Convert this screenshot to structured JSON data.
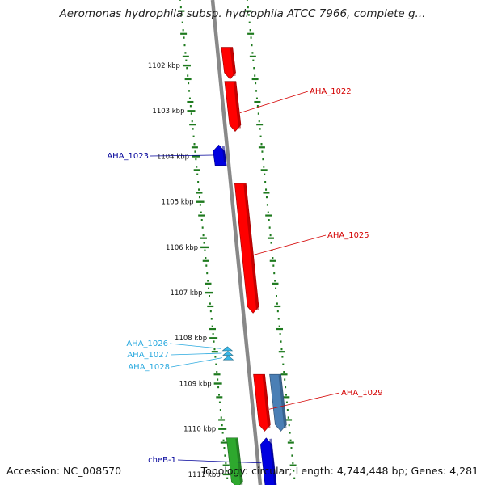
{
  "title": "Aeromonas hydrophila subsp. hydrophila ATCC 7966, complete g...",
  "footer": {
    "accession": "Accession: NC_008570",
    "summary": "Topology: circular; Length: 4,744,448 bp; Genes: 4,281"
  },
  "colors": {
    "backbone": "#888888",
    "tick": "#1e7a1e",
    "forward_gene": "#ff0000",
    "reverse_gene": "#0000e0",
    "small_gene": "#39b8e8",
    "steel_gene": "#4a7fb5",
    "green_gene": "#2ea82e",
    "label_red": "#d40000",
    "label_blue": "#000099",
    "label_cyan": "#29a9df"
  },
  "ticks": [
    "1102 kbp",
    "1103 kbp",
    "1104 kbp",
    "1105 kbp",
    "1106 kbp",
    "1107 kbp",
    "1108 kbp",
    "1109 kbp",
    "1110 kbp",
    "1111 kbp"
  ],
  "genes": [
    {
      "label": "",
      "strand": "+",
      "color": "forward_gene",
      "start": 1101.6,
      "end": 1102.3
    },
    {
      "label": "AHA_1022",
      "strand": "+",
      "color": "forward_gene",
      "start": 1102.35,
      "end": 1103.45
    },
    {
      "label": "AHA_1023",
      "strand": "-",
      "color": "reverse_gene",
      "start": 1103.75,
      "end": 1104.2
    },
    {
      "label": "AHA_1025",
      "strand": "+",
      "color": "forward_gene",
      "start": 1104.6,
      "end": 1107.45
    },
    {
      "label": "AHA_1026",
      "strand": "-",
      "color": "small_gene",
      "start": 1108.2,
      "end": 1108.27
    },
    {
      "label": "AHA_1027",
      "strand": "-",
      "color": "small_gene",
      "start": 1108.3,
      "end": 1108.37
    },
    {
      "label": "AHA_1028",
      "strand": "-",
      "color": "small_gene",
      "start": 1108.4,
      "end": 1108.47
    },
    {
      "label": "AHA_1029",
      "strand": "+",
      "color": "forward_gene",
      "start": 1108.8,
      "end": 1110.05
    },
    {
      "label": "",
      "strand": "+",
      "color": "steel_gene",
      "start": 1108.8,
      "end": 1110.05
    },
    {
      "label": "",
      "strand": "+",
      "color": "green_gene",
      "start": 1110.2,
      "end": 1111.3
    },
    {
      "label": "cheB-1",
      "strand": "-",
      "color": "reverse_gene",
      "start": 1110.2,
      "end": 1111.3
    }
  ]
}
